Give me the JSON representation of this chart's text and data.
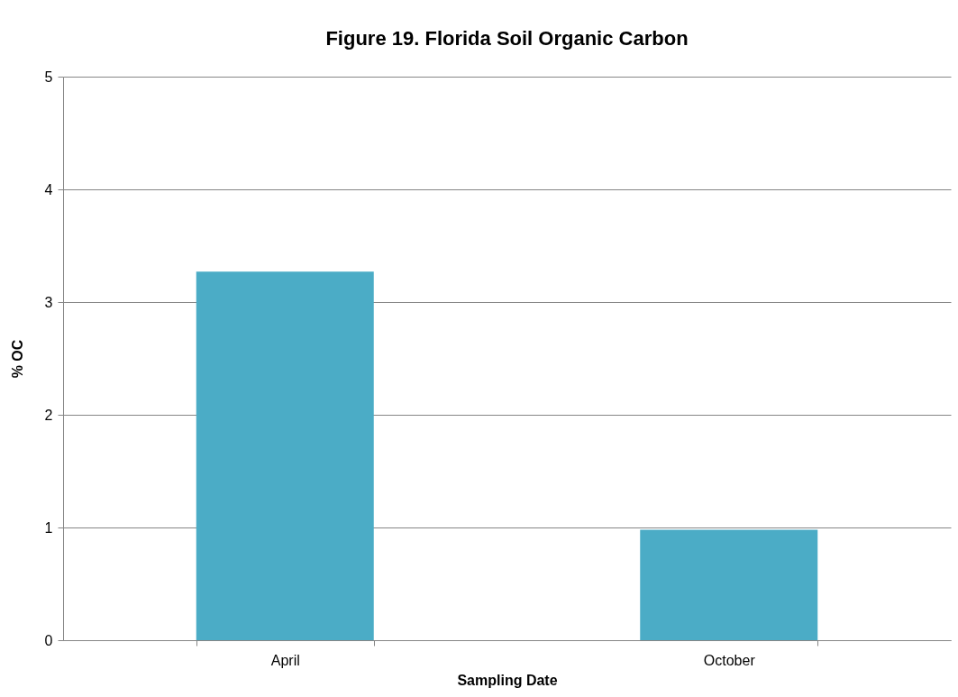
{
  "chart_data": {
    "type": "bar",
    "title": "Figure 19. Florida Soil Organic Carbon",
    "xlabel": "Sampling Date",
    "ylabel": "% OC",
    "categories": [
      "April",
      "October"
    ],
    "values": [
      3.27,
      0.98
    ],
    "color": "#4bacc6",
    "ylim": [
      0,
      5
    ],
    "yticks": [
      0,
      1,
      2,
      3,
      4,
      5
    ],
    "grid": "y"
  }
}
